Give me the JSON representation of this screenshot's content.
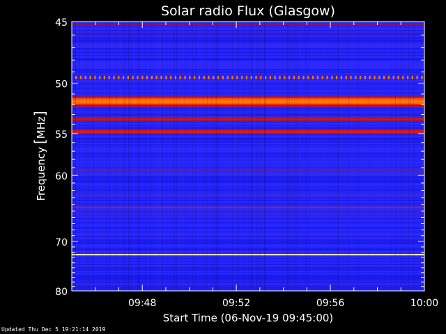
{
  "chart_data": {
    "type": "heatmap",
    "title": "Solar radio Flux (Glasgow)",
    "xlabel": "Start Time (06-Nov-19 09:45:00)",
    "ylabel_parts": {
      "prefix": "Frequency",
      "bracket_open": "[",
      "unit": "MHz",
      "bracket_close": "]"
    },
    "x_range_minutes_after_start": [
      0,
      15
    ],
    "x_ticks": [
      {
        "minute": 3,
        "label": "09:48"
      },
      {
        "minute": 7,
        "label": "09:52"
      },
      {
        "minute": 11,
        "label": "09:56"
      },
      {
        "minute": 15,
        "label": "10:00"
      }
    ],
    "y_range_mhz": [
      45,
      80
    ],
    "y_ticks": [
      {
        "mhz": 45,
        "label": "45"
      },
      {
        "mhz": 50,
        "label": "50"
      },
      {
        "mhz": 55,
        "label": "55"
      },
      {
        "mhz": 60,
        "label": "60"
      },
      {
        "mhz": 70,
        "label": "70"
      },
      {
        "mhz": 80,
        "label": "80"
      }
    ],
    "y_scale": "reciprocal",
    "colormap": [
      "#000000",
      "#1010e0",
      "#2a2aff",
      "#a01030",
      "#ff2000",
      "#ff8000",
      "#ffe070",
      "#ffffff"
    ],
    "background_intensity": 0.25,
    "emission_bands": [
      {
        "mhz": 45.2,
        "width_mhz": 0.3,
        "intensity": 0.45
      },
      {
        "mhz": 49.5,
        "width_mhz": 0.3,
        "intensity": 0.7,
        "pattern": "dotted"
      },
      {
        "mhz": 51.7,
        "width_mhz": 1.3,
        "intensity": 0.72
      },
      {
        "mhz": 53.5,
        "width_mhz": 0.8,
        "intensity": 0.5
      },
      {
        "mhz": 54.8,
        "width_mhz": 0.6,
        "intensity": 0.55
      },
      {
        "mhz": 59.5,
        "width_mhz": 0.3,
        "intensity": 0.45
      },
      {
        "mhz": 64.5,
        "width_mhz": 0.5,
        "intensity": 0.5
      },
      {
        "mhz": 72.4,
        "width_mhz": 0.45,
        "intensity": 0.95
      }
    ]
  },
  "footer": {
    "updated": "Updated Thu Dec  5 19:21:14 2019"
  }
}
